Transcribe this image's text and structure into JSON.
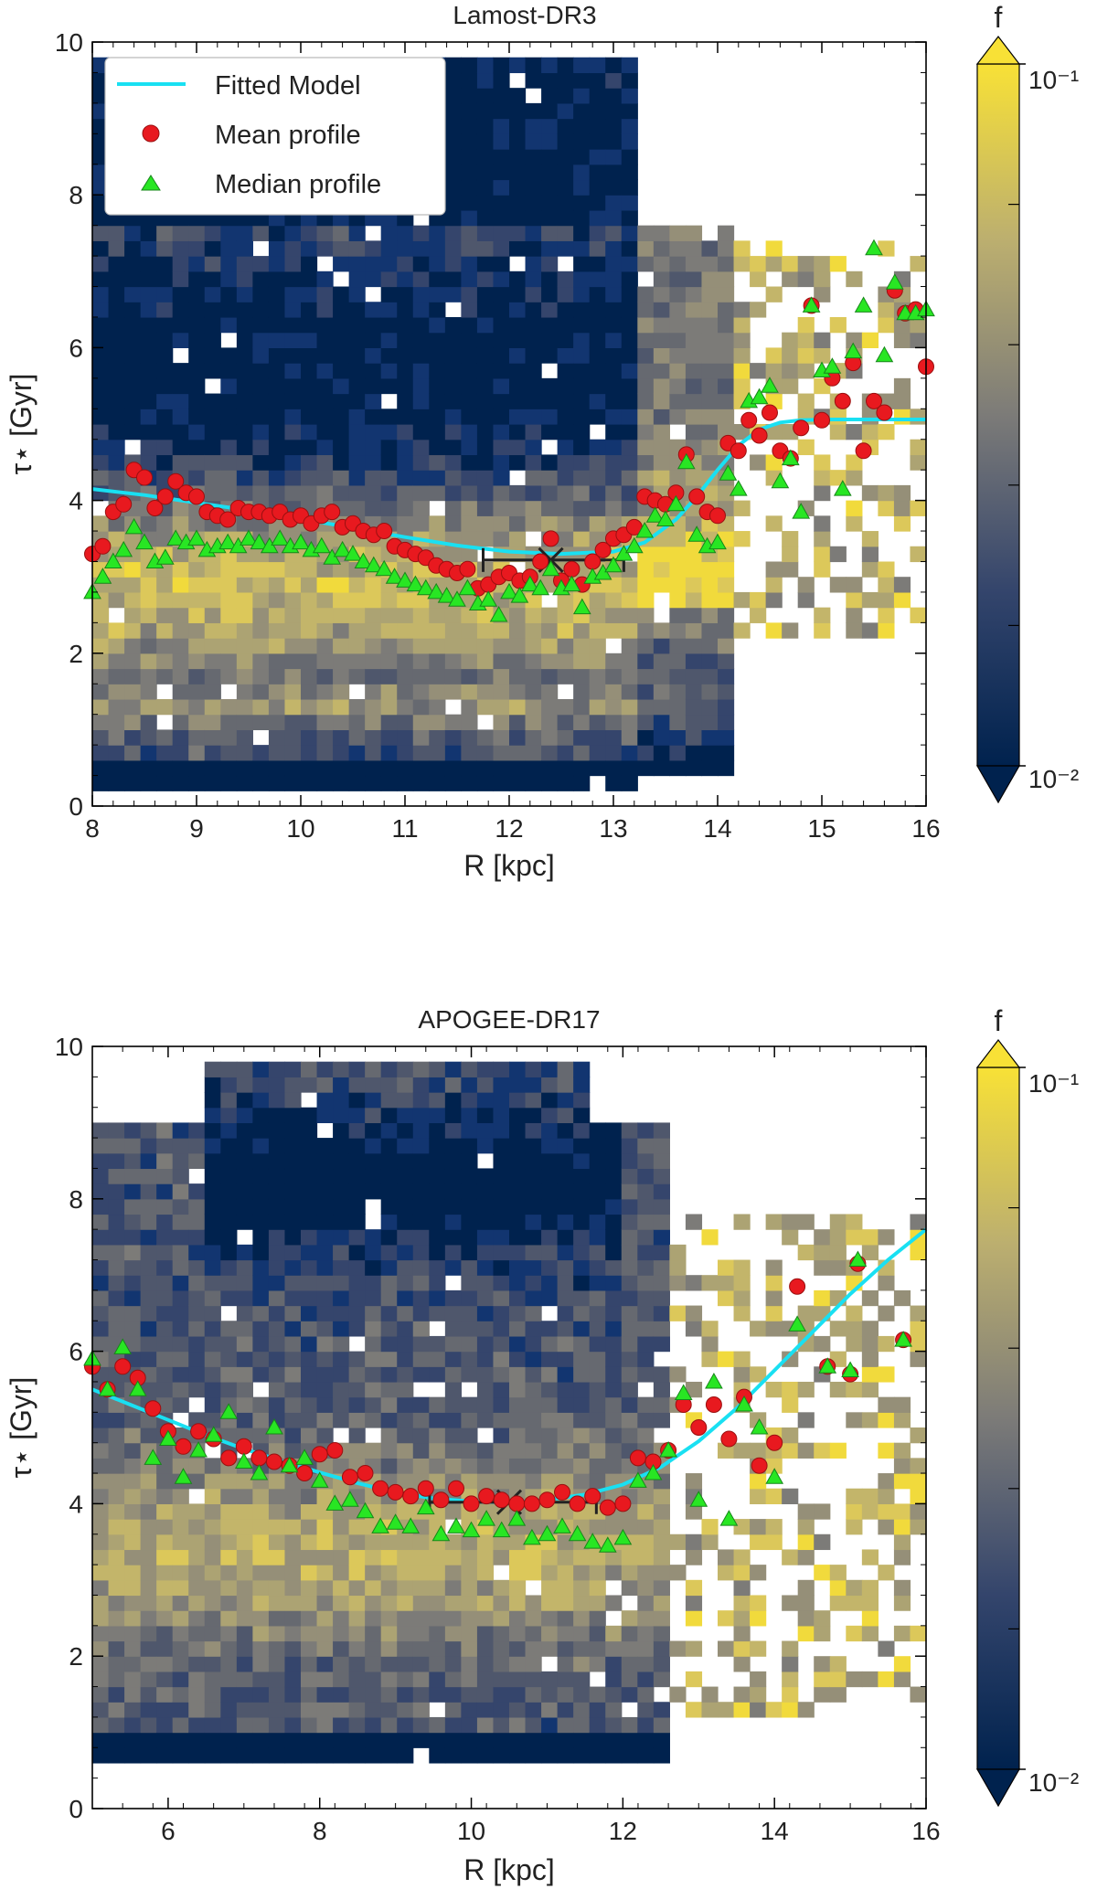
{
  "chart_data": [
    {
      "type": "heatmap",
      "title": "Lamost-DR3",
      "xlabel": "R [kpc]",
      "ylabel": "τ⋆ [Gyr]",
      "xlim": [
        8,
        16
      ],
      "ylim": [
        0,
        10
      ],
      "xticks": [
        "8",
        "9",
        "10",
        "11",
        "12",
        "13",
        "14",
        "15",
        "16"
      ],
      "yticks": [
        "0",
        "2",
        "4",
        "6",
        "8",
        "10"
      ],
      "colorbar": {
        "label": "f",
        "scale": "log",
        "min_label": "10⁻²",
        "max_label": "10⁻¹",
        "vmin": 0.01,
        "vmax": 0.1,
        "extend": "both"
      },
      "legend": {
        "position": "top-left",
        "entries": [
          "Fitted Model",
          "Mean profile",
          "Median profile"
        ]
      },
      "fitted_model": {
        "R": [
          8.0,
          8.5,
          9.0,
          9.5,
          10.0,
          10.5,
          11.0,
          11.5,
          12.0,
          12.5,
          13.0,
          13.3,
          13.6,
          13.8,
          14.0,
          14.2,
          14.4,
          14.6,
          14.8,
          15.0,
          15.5,
          16.0
        ],
        "tau": [
          4.15,
          4.07,
          3.97,
          3.87,
          3.76,
          3.64,
          3.52,
          3.41,
          3.33,
          3.3,
          3.33,
          3.45,
          3.75,
          4.05,
          4.4,
          4.72,
          4.93,
          5.02,
          5.05,
          5.06,
          5.06,
          5.06
        ]
      },
      "break_point": {
        "R": 12.4,
        "tau": 3.22,
        "R_err": [
          11.75,
          13.1
        ]
      },
      "mean_profile": {
        "R": [
          8.0,
          8.1,
          8.2,
          8.3,
          8.4,
          8.5,
          8.6,
          8.7,
          8.8,
          8.9,
          9.0,
          9.1,
          9.2,
          9.3,
          9.4,
          9.5,
          9.6,
          9.7,
          9.8,
          9.9,
          10.0,
          10.1,
          10.2,
          10.3,
          10.4,
          10.5,
          10.6,
          10.7,
          10.8,
          10.9,
          11.0,
          11.1,
          11.2,
          11.3,
          11.4,
          11.5,
          11.6,
          11.7,
          11.8,
          11.9,
          12.0,
          12.1,
          12.2,
          12.3,
          12.4,
          12.5,
          12.6,
          12.7,
          12.8,
          12.9,
          13.0,
          13.1,
          13.2,
          13.3,
          13.4,
          13.5,
          13.6,
          13.7,
          13.8,
          13.9,
          14.0,
          14.1,
          14.2,
          14.3,
          14.4,
          14.5,
          14.6,
          14.7,
          14.8,
          14.9,
          15.0,
          15.1,
          15.2,
          15.3,
          15.4,
          15.5,
          15.6,
          15.7,
          15.8,
          15.9,
          16.0
        ],
        "tau": [
          3.3,
          3.4,
          3.85,
          3.95,
          4.4,
          4.3,
          3.9,
          4.05,
          4.25,
          4.1,
          4.05,
          3.85,
          3.8,
          3.75,
          3.9,
          3.85,
          3.85,
          3.8,
          3.85,
          3.75,
          3.8,
          3.7,
          3.8,
          3.85,
          3.65,
          3.7,
          3.6,
          3.55,
          3.6,
          3.4,
          3.35,
          3.3,
          3.25,
          3.15,
          3.1,
          3.05,
          3.1,
          2.85,
          2.9,
          3.0,
          3.05,
          2.95,
          3.0,
          3.2,
          3.5,
          2.95,
          3.1,
          2.9,
          3.2,
          3.35,
          3.5,
          3.55,
          3.65,
          4.05,
          4.0,
          3.95,
          4.1,
          4.6,
          4.05,
          3.85,
          3.8,
          4.75,
          4.65,
          5.05,
          4.85,
          5.15,
          4.65,
          4.55,
          4.95,
          6.55,
          5.05,
          5.6,
          5.3,
          5.8,
          4.65,
          5.3,
          5.15,
          6.75,
          6.45,
          6.5,
          5.75
        ]
      },
      "median_profile": {
        "R": [
          8.0,
          8.1,
          8.2,
          8.3,
          8.4,
          8.5,
          8.6,
          8.7,
          8.8,
          8.9,
          9.0,
          9.1,
          9.2,
          9.3,
          9.4,
          9.5,
          9.6,
          9.7,
          9.8,
          9.9,
          10.0,
          10.1,
          10.2,
          10.3,
          10.4,
          10.5,
          10.6,
          10.7,
          10.8,
          10.9,
          11.0,
          11.1,
          11.2,
          11.3,
          11.4,
          11.5,
          11.6,
          11.7,
          11.8,
          11.9,
          12.0,
          12.1,
          12.2,
          12.3,
          12.4,
          12.5,
          12.6,
          12.7,
          12.8,
          12.9,
          13.0,
          13.1,
          13.2,
          13.3,
          13.4,
          13.5,
          13.6,
          13.7,
          13.8,
          13.9,
          14.0,
          14.1,
          14.2,
          14.3,
          14.4,
          14.5,
          14.6,
          14.7,
          14.8,
          14.9,
          15.0,
          15.1,
          15.2,
          15.3,
          15.4,
          15.5,
          15.6,
          15.7,
          15.8,
          15.9,
          16.0
        ],
        "tau": [
          2.8,
          3.0,
          3.2,
          3.35,
          3.65,
          3.45,
          3.2,
          3.25,
          3.5,
          3.45,
          3.5,
          3.35,
          3.4,
          3.45,
          3.4,
          3.5,
          3.45,
          3.4,
          3.5,
          3.4,
          3.45,
          3.35,
          3.4,
          3.25,
          3.35,
          3.3,
          3.2,
          3.15,
          3.1,
          3.0,
          2.95,
          2.9,
          2.85,
          2.8,
          2.75,
          2.7,
          2.85,
          2.65,
          2.7,
          2.5,
          2.8,
          2.75,
          2.9,
          2.85,
          3.1,
          2.85,
          2.9,
          2.6,
          3.0,
          3.05,
          3.15,
          3.3,
          3.4,
          3.6,
          3.8,
          3.75,
          3.95,
          4.5,
          3.55,
          3.4,
          3.45,
          4.35,
          4.15,
          5.3,
          5.35,
          5.5,
          4.25,
          4.55,
          3.85,
          6.55,
          5.7,
          5.75,
          4.15,
          5.95,
          6.55,
          7.3,
          5.9,
          6.85,
          6.45,
          6.45,
          6.5
        ]
      }
    },
    {
      "type": "heatmap",
      "title": "APOGEE-DR17",
      "xlabel": "R [kpc]",
      "ylabel": "τ⋆ [Gyr]",
      "xlim": [
        5,
        16
      ],
      "ylim": [
        0,
        10
      ],
      "xticks": [
        "6",
        "8",
        "10",
        "12",
        "14",
        "16"
      ],
      "yticks": [
        "0",
        "2",
        "4",
        "6",
        "8",
        "10"
      ],
      "colorbar": {
        "label": "f",
        "scale": "log",
        "min_label": "10⁻²",
        "max_label": "10⁻¹",
        "vmin": 0.01,
        "vmax": 0.1,
        "extend": "both"
      },
      "fitted_model": {
        "R": [
          5.0,
          5.5,
          6.0,
          6.5,
          7.0,
          7.5,
          8.0,
          8.5,
          9.0,
          9.5,
          10.0,
          10.5,
          11.0,
          11.5,
          12.0,
          12.5,
          13.0,
          13.5,
          14.0,
          14.5,
          15.0,
          15.5,
          16.0
        ],
        "tau": [
          5.5,
          5.3,
          5.1,
          4.9,
          4.72,
          4.56,
          4.41,
          4.27,
          4.15,
          4.07,
          4.03,
          4.02,
          4.05,
          4.12,
          4.25,
          4.48,
          4.82,
          5.25,
          5.75,
          6.25,
          6.75,
          7.2,
          7.6
        ]
      },
      "break_point": {
        "R": 10.5,
        "tau": 4.02,
        "R_err": [
          9.45,
          11.65
        ]
      },
      "mean_profile": {
        "R": [
          5.0,
          5.2,
          5.4,
          5.6,
          5.8,
          6.0,
          6.2,
          6.4,
          6.6,
          6.8,
          7.0,
          7.2,
          7.4,
          7.6,
          7.8,
          8.0,
          8.2,
          8.4,
          8.6,
          8.8,
          9.0,
          9.2,
          9.4,
          9.6,
          9.8,
          10.0,
          10.2,
          10.4,
          10.6,
          10.8,
          11.0,
          11.2,
          11.4,
          11.6,
          11.8,
          12.0,
          12.2,
          12.4,
          12.6,
          12.8,
          13.0,
          13.2,
          13.4,
          13.6,
          13.8,
          14.0,
          14.3,
          14.7,
          15.0,
          15.1,
          15.7
        ],
        "tau": [
          5.8,
          5.5,
          5.8,
          5.65,
          5.25,
          4.95,
          4.75,
          4.95,
          4.85,
          4.6,
          4.75,
          4.6,
          4.55,
          4.5,
          4.4,
          4.65,
          4.7,
          4.35,
          4.4,
          4.2,
          4.15,
          4.1,
          4.2,
          4.05,
          4.2,
          4.0,
          4.1,
          4.05,
          4.0,
          4.0,
          4.05,
          4.15,
          4.0,
          4.1,
          3.95,
          4.0,
          4.6,
          4.55,
          4.7,
          5.3,
          5.0,
          5.3,
          4.85,
          5.4,
          4.5,
          4.8,
          6.85,
          5.8,
          5.7,
          7.15,
          6.15
        ]
      },
      "median_profile": {
        "R": [
          5.0,
          5.2,
          5.4,
          5.6,
          5.8,
          6.0,
          6.2,
          6.4,
          6.6,
          6.8,
          7.0,
          7.2,
          7.4,
          7.6,
          7.8,
          8.0,
          8.2,
          8.4,
          8.6,
          8.8,
          9.0,
          9.2,
          9.4,
          9.6,
          9.8,
          10.0,
          10.2,
          10.4,
          10.6,
          10.8,
          11.0,
          11.2,
          11.4,
          11.6,
          11.8,
          12.0,
          12.2,
          12.4,
          12.6,
          12.8,
          13.0,
          13.2,
          13.4,
          13.6,
          13.8,
          14.0,
          14.3,
          14.7,
          15.0,
          15.1,
          15.7
        ],
        "tau": [
          5.9,
          5.5,
          6.05,
          5.5,
          4.6,
          4.85,
          4.35,
          4.7,
          4.9,
          5.2,
          4.55,
          4.4,
          5.0,
          4.5,
          4.6,
          4.3,
          4.0,
          4.05,
          3.9,
          3.7,
          3.75,
          3.7,
          3.95,
          3.6,
          3.7,
          3.65,
          3.8,
          3.65,
          3.8,
          3.55,
          3.6,
          3.7,
          3.6,
          3.5,
          3.45,
          3.55,
          4.3,
          4.4,
          4.7,
          5.45,
          4.05,
          5.6,
          3.8,
          5.3,
          5.0,
          4.35,
          6.35,
          5.8,
          5.75,
          7.2,
          6.15
        ]
      }
    }
  ]
}
